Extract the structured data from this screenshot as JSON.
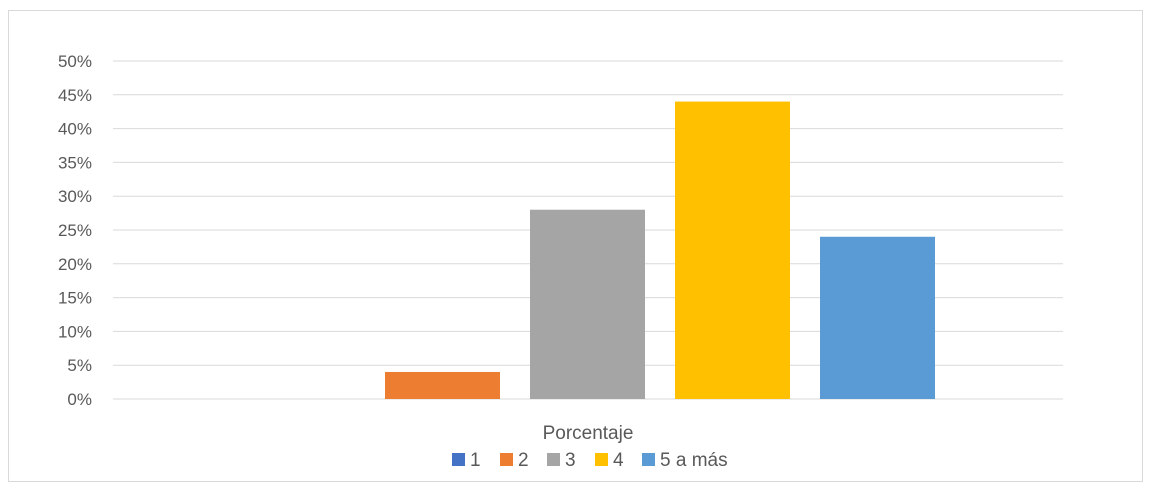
{
  "chart_data": {
    "type": "bar",
    "categories": [
      "Porcentaje"
    ],
    "series": [
      {
        "name": "1",
        "values": [
          0
        ],
        "color": "#4472c4"
      },
      {
        "name": "2",
        "values": [
          4
        ],
        "color": "#ed7d31"
      },
      {
        "name": "3",
        "values": [
          28
        ],
        "color": "#a5a5a5"
      },
      {
        "name": "4",
        "values": [
          44
        ],
        "color": "#ffc000"
      },
      {
        "name": "5 a más",
        "values": [
          24
        ],
        "color": "#5b9bd5"
      }
    ],
    "yticks": [
      "0%",
      "5%",
      "10%",
      "15%",
      "20%",
      "25%",
      "30%",
      "35%",
      "40%",
      "45%",
      "50%"
    ],
    "ylim": [
      0,
      50
    ],
    "grid": true,
    "legend_position": "bottom",
    "gridline_color": "#d9d9d9"
  }
}
